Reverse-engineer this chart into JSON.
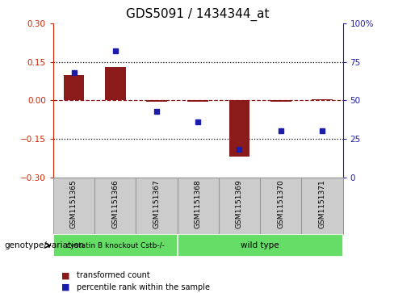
{
  "title": "GDS5091 / 1434344_at",
  "samples": [
    "GSM1151365",
    "GSM1151366",
    "GSM1151367",
    "GSM1151368",
    "GSM1151369",
    "GSM1151370",
    "GSM1151371"
  ],
  "bar_values": [
    0.1,
    0.13,
    -0.005,
    -0.005,
    -0.22,
    -0.005,
    0.005
  ],
  "dot_values": [
    68,
    82,
    43,
    36,
    18,
    30,
    30
  ],
  "ylim_left": [
    -0.3,
    0.3
  ],
  "ylim_right": [
    0,
    100
  ],
  "yticks_left": [
    -0.3,
    -0.15,
    0,
    0.15,
    0.3
  ],
  "yticks_right": [
    0,
    25,
    50,
    75,
    100
  ],
  "ytick_labels_right": [
    "0",
    "25",
    "50",
    "75",
    "100%"
  ],
  "dotted_lines": [
    -0.15,
    0.15
  ],
  "bar_color": "#8B1A1A",
  "dot_color": "#1C1CAA",
  "bar_width": 0.5,
  "group1_label": "cystatin B knockout Cstb-/-",
  "group2_label": "wild type",
  "group1_indices": [
    0,
    1,
    2
  ],
  "group2_indices": [
    3,
    4,
    5,
    6
  ],
  "group_color": "#66DD66",
  "sample_box_color": "#CCCCCC",
  "sample_box_edge": "#999999",
  "genotype_label": "genotype/variation",
  "legend_bar_label": "transformed count",
  "legend_dot_label": "percentile rank within the sample",
  "left_axis_color": "#CC2200",
  "right_axis_color": "#1C1CAA",
  "title_fontsize": 11,
  "tick_fontsize": 7.5,
  "sample_fontsize": 6.5,
  "group_fontsize": 7.5,
  "legend_fontsize": 7,
  "genotype_fontsize": 7.5
}
